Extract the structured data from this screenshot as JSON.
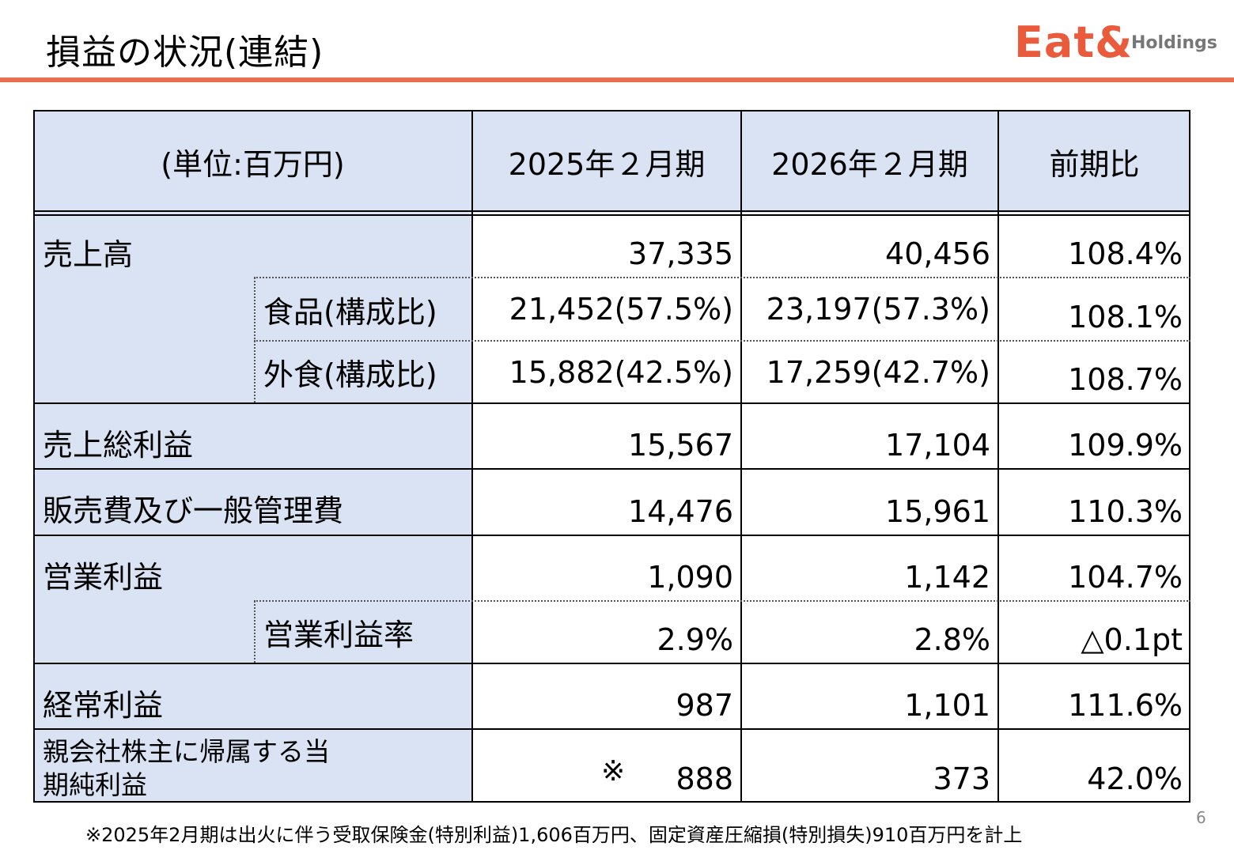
{
  "header": {
    "title": "損益の状況(連結)",
    "logo": {
      "main": "Eat&",
      "sub": "Holdings",
      "color": "#ea5b3c"
    }
  },
  "table": {
    "columns": [
      "(単位:百万円)",
      "2025年２月期",
      "2026年２月期",
      "前期比"
    ],
    "rows": [
      {
        "label": "売上高",
        "fy2025": "37,335",
        "fy2026": "40,456",
        "yoy": "108.4%"
      },
      {
        "label": "食品(構成比)",
        "fy2025": "21,452(57.5%)",
        "fy2026": "23,197(57.3%)",
        "yoy": "108.1%"
      },
      {
        "label": "外食(構成比)",
        "fy2025": "15,882(42.5%)",
        "fy2026": "17,259(42.7%)",
        "yoy": "108.7%"
      },
      {
        "label": "売上総利益",
        "fy2025": "15,567",
        "fy2026": "17,104",
        "yoy": "109.9%"
      },
      {
        "label": "販売費及び一般管理費",
        "fy2025": "14,476",
        "fy2026": "15,961",
        "yoy": "110.3%"
      },
      {
        "label": "営業利益",
        "fy2025": "1,090",
        "fy2026": "1,142",
        "yoy": "104.7%"
      },
      {
        "label": "営業利益率",
        "fy2025": "2.9%",
        "fy2026": "2.8%",
        "yoy": "△0.1pt"
      },
      {
        "label": "経常利益",
        "fy2025": "987",
        "fy2026": "1,101",
        "yoy": "111.6%"
      },
      {
        "label": "親会社株主に帰属する当期純利益",
        "fy2025": "888",
        "fy2026": "373",
        "yoy": "42.0%",
        "mark": "※"
      }
    ]
  },
  "footnote": "※2025年2月期は出火に伴う受取保険金(特別利益)1,606百万円、固定資産圧縮損(特別損失)910百万円を計上",
  "page_number": "6"
}
